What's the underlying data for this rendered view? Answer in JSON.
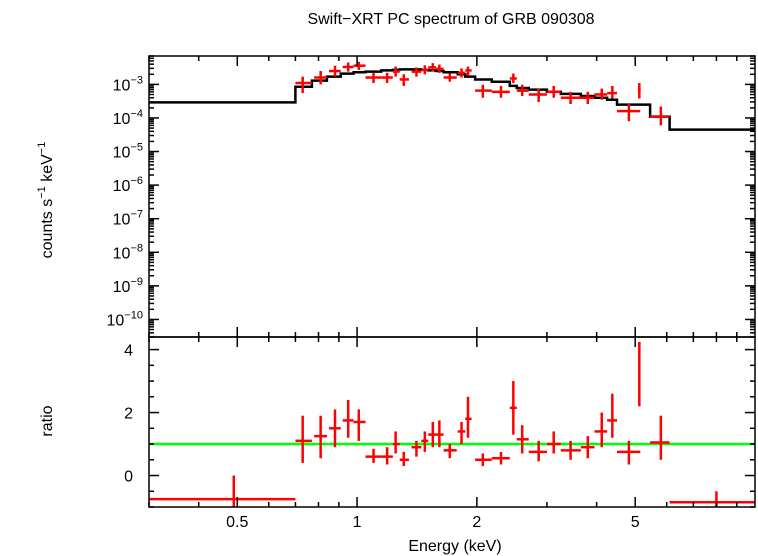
{
  "chart_data": [
    {
      "type": "line",
      "panel": "spectrum",
      "title": "Swift−XRT PC spectrum of GRB 090308",
      "ylabel": {
        "base": "counts s",
        "exp1": "−1",
        "mid": " keV",
        "exp2": "−1"
      },
      "xlabel": "",
      "xscale": "log",
      "yscale": "log",
      "xlim": [
        0.3,
        10
      ],
      "ylim": [
        3e-11,
        0.007
      ],
      "yticks": [
        {
          "value": 0.001,
          "mant": "10",
          "exp": "−3"
        },
        {
          "value": 0.0001,
          "mant": "10",
          "exp": "−4"
        },
        {
          "value": 1e-05,
          "mant": "10",
          "exp": "−5"
        },
        {
          "value": 1e-06,
          "mant": "10",
          "exp": "−6"
        },
        {
          "value": 1e-07,
          "mant": "10",
          "exp": "−7"
        },
        {
          "value": 1e-08,
          "mant": "10",
          "exp": "−8"
        },
        {
          "value": 1e-09,
          "mant": "10",
          "exp": "−9"
        },
        {
          "value": 1e-10,
          "mant": "10",
          "exp": "−10"
        }
      ],
      "colors": {
        "data": "#ff0000",
        "model": "#000000",
        "axes": "#000000"
      },
      "series": [
        {
          "role": "data",
          "points": [
            {
              "x": 0.73,
              "xlo": 0.7,
              "xhi": 0.77,
              "y": 0.0011,
              "ylo": 0.00055,
              "yhi": 0.0017
            },
            {
              "x": 0.81,
              "xlo": 0.78,
              "xhi": 0.84,
              "y": 0.0016,
              "ylo": 0.001,
              "yhi": 0.0025
            },
            {
              "x": 0.88,
              "xlo": 0.85,
              "xhi": 0.91,
              "y": 0.0025,
              "ylo": 0.0017,
              "yhi": 0.0036
            },
            {
              "x": 0.95,
              "xlo": 0.92,
              "xhi": 0.98,
              "y": 0.0033,
              "ylo": 0.0024,
              "yhi": 0.0045
            },
            {
              "x": 1.01,
              "xlo": 0.98,
              "xhi": 1.05,
              "y": 0.0036,
              "ylo": 0.0027,
              "yhi": 0.0047
            },
            {
              "x": 1.1,
              "xlo": 1.05,
              "xhi": 1.15,
              "y": 0.0016,
              "ylo": 0.0011,
              "yhi": 0.0022
            },
            {
              "x": 1.19,
              "xlo": 1.15,
              "xhi": 1.23,
              "y": 0.0016,
              "ylo": 0.0011,
              "yhi": 0.0022
            },
            {
              "x": 1.25,
              "xlo": 1.23,
              "xhi": 1.28,
              "y": 0.0024,
              "ylo": 0.0017,
              "yhi": 0.0034
            },
            {
              "x": 1.31,
              "xlo": 1.28,
              "xhi": 1.35,
              "y": 0.0014,
              "ylo": 0.0009,
              "yhi": 0.002
            },
            {
              "x": 1.41,
              "xlo": 1.37,
              "xhi": 1.45,
              "y": 0.0024,
              "ylo": 0.0017,
              "yhi": 0.0032
            },
            {
              "x": 1.48,
              "xlo": 1.45,
              "xhi": 1.51,
              "y": 0.0027,
              "ylo": 0.002,
              "yhi": 0.0037
            },
            {
              "x": 1.55,
              "xlo": 1.51,
              "xhi": 1.58,
              "y": 0.0032,
              "ylo": 0.0024,
              "yhi": 0.0043
            },
            {
              "x": 1.61,
              "xlo": 1.58,
              "xhi": 1.65,
              "y": 0.0029,
              "ylo": 0.0022,
              "yhi": 0.0039
            },
            {
              "x": 1.71,
              "xlo": 1.65,
              "xhi": 1.78,
              "y": 0.0016,
              "ylo": 0.0012,
              "yhi": 0.0021
            },
            {
              "x": 1.83,
              "xlo": 1.79,
              "xhi": 1.87,
              "y": 0.0022,
              "ylo": 0.0016,
              "yhi": 0.003
            },
            {
              "x": 1.9,
              "xlo": 1.87,
              "xhi": 1.94,
              "y": 0.0026,
              "ylo": 0.0018,
              "yhi": 0.0034
            },
            {
              "x": 2.07,
              "xlo": 1.98,
              "xhi": 2.18,
              "y": 0.00065,
              "ylo": 0.0004,
              "yhi": 0.00098
            },
            {
              "x": 2.3,
              "xlo": 2.18,
              "xhi": 2.42,
              "y": 0.0006,
              "ylo": 0.0004,
              "yhi": 0.0009
            },
            {
              "x": 2.47,
              "xlo": 2.42,
              "xhi": 2.52,
              "y": 0.0015,
              "ylo": 0.0011,
              "yhi": 0.0021
            },
            {
              "x": 2.6,
              "xlo": 2.52,
              "xhi": 2.7,
              "y": 0.00065,
              "ylo": 0.00045,
              "yhi": 0.00098
            },
            {
              "x": 2.86,
              "xlo": 2.7,
              "xhi": 3.0,
              "y": 0.0005,
              "ylo": 0.0003,
              "yhi": 0.00075
            },
            {
              "x": 3.12,
              "xlo": 3.0,
              "xhi": 3.25,
              "y": 0.0006,
              "ylo": 0.0004,
              "yhi": 0.0009
            },
            {
              "x": 3.44,
              "xlo": 3.25,
              "xhi": 3.65,
              "y": 0.0004,
              "ylo": 0.00026,
              "yhi": 0.0006
            },
            {
              "x": 3.8,
              "xlo": 3.65,
              "xhi": 3.95,
              "y": 0.0004,
              "ylo": 0.00026,
              "yhi": 0.0006
            },
            {
              "x": 4.12,
              "xlo": 3.95,
              "xhi": 4.25,
              "y": 0.0005,
              "ylo": 0.00035,
              "yhi": 0.00075
            },
            {
              "x": 4.38,
              "xlo": 4.25,
              "xhi": 4.5,
              "y": 0.00055,
              "ylo": 0.00038,
              "yhi": 0.0009
            },
            {
              "x": 4.82,
              "xlo": 4.5,
              "xhi": 5.15,
              "y": 0.00016,
              "ylo": 8e-05,
              "yhi": 0.00026
            },
            {
              "x": 5.12,
              "xlo": 5.08,
              "xhi": 5.16,
              "y": 0.0007,
              "ylo": 0.00038,
              "yhi": 0.0011
            },
            {
              "x": 5.8,
              "xlo": 5.45,
              "xhi": 6.1,
              "y": 0.00011,
              "ylo": 6e-05,
              "yhi": 0.00022
            }
          ]
        },
        {
          "role": "model",
          "steps": [
            {
              "x1": 0.3,
              "x2": 0.7,
              "y": 0.00029
            },
            {
              "x1": 0.7,
              "x2": 0.77,
              "y": 0.00085
            },
            {
              "x1": 0.77,
              "x2": 0.84,
              "y": 0.0013
            },
            {
              "x1": 0.84,
              "x2": 0.91,
              "y": 0.0017
            },
            {
              "x1": 0.91,
              "x2": 0.98,
              "y": 0.0021
            },
            {
              "x1": 0.98,
              "x2": 1.05,
              "y": 0.0023
            },
            {
              "x1": 1.05,
              "x2": 1.15,
              "y": 0.0024
            },
            {
              "x1": 1.15,
              "x2": 1.23,
              "y": 0.0026
            },
            {
              "x1": 1.23,
              "x2": 1.28,
              "y": 0.0027
            },
            {
              "x1": 1.28,
              "x2": 1.37,
              "y": 0.0028
            },
            {
              "x1": 1.37,
              "x2": 1.45,
              "y": 0.0028
            },
            {
              "x1": 1.45,
              "x2": 1.51,
              "y": 0.0027
            },
            {
              "x1": 1.51,
              "x2": 1.58,
              "y": 0.0026
            },
            {
              "x1": 1.58,
              "x2": 1.65,
              "y": 0.0025
            },
            {
              "x1": 1.65,
              "x2": 1.79,
              "y": 0.0023
            },
            {
              "x1": 1.79,
              "x2": 1.87,
              "y": 0.002
            },
            {
              "x1": 1.87,
              "x2": 1.98,
              "y": 0.0017
            },
            {
              "x1": 1.98,
              "x2": 2.18,
              "y": 0.0014
            },
            {
              "x1": 2.18,
              "x2": 2.42,
              "y": 0.0012
            },
            {
              "x1": 2.42,
              "x2": 2.52,
              "y": 0.0009
            },
            {
              "x1": 2.52,
              "x2": 2.7,
              "y": 0.00078
            },
            {
              "x1": 2.7,
              "x2": 3.0,
              "y": 0.0007
            },
            {
              "x1": 3.0,
              "x2": 3.25,
              "y": 0.0006
            },
            {
              "x1": 3.25,
              "x2": 3.65,
              "y": 0.00052
            },
            {
              "x1": 3.65,
              "x2": 3.95,
              "y": 0.00045
            },
            {
              "x1": 3.95,
              "x2": 4.25,
              "y": 0.0004
            },
            {
              "x1": 4.25,
              "x2": 4.5,
              "y": 0.00035
            },
            {
              "x1": 4.5,
              "x2": 5.45,
              "y": 0.00025
            },
            {
              "x1": 5.45,
              "x2": 6.1,
              "y": 0.00011
            },
            {
              "x1": 6.1,
              "x2": 10.0,
              "y": 4.5e-05
            }
          ]
        }
      ]
    },
    {
      "type": "line",
      "panel": "ratio",
      "xlabel": "Energy (keV)",
      "ylabel": "ratio",
      "xscale": "log",
      "xlim": [
        0.3,
        10
      ],
      "ylim": [
        -1,
        4.4
      ],
      "xticks": [
        {
          "value": 0.5,
          "label": "0.5"
        },
        {
          "value": 1,
          "label": "1"
        },
        {
          "value": 2,
          "label": "2"
        },
        {
          "value": 5,
          "label": "5"
        }
      ],
      "yticks": [
        {
          "value": 0,
          "label": "0"
        },
        {
          "value": 2,
          "label": "2"
        },
        {
          "value": 4,
          "label": "4"
        }
      ],
      "reference_line": 1,
      "colors": {
        "data": "#ff0000",
        "reference": "#00ff00",
        "axes": "#000000"
      },
      "series": [
        {
          "role": "ratio",
          "points": [
            {
              "x": 0.49,
              "xlo": 0.3,
              "xhi": 0.7,
              "y": -0.75,
              "ylo": -1.0,
              "yhi": 0.0
            },
            {
              "x": 0.73,
              "xlo": 0.7,
              "xhi": 0.77,
              "y": 1.1,
              "ylo": 0.4,
              "yhi": 1.9
            },
            {
              "x": 0.81,
              "xlo": 0.78,
              "xhi": 0.84,
              "y": 1.25,
              "ylo": 0.55,
              "yhi": 1.9
            },
            {
              "x": 0.88,
              "xlo": 0.85,
              "xhi": 0.91,
              "y": 1.5,
              "ylo": 0.9,
              "yhi": 2.1
            },
            {
              "x": 0.95,
              "xlo": 0.92,
              "xhi": 0.98,
              "y": 1.75,
              "ylo": 1.2,
              "yhi": 2.4
            },
            {
              "x": 1.01,
              "xlo": 0.98,
              "xhi": 1.05,
              "y": 1.7,
              "ylo": 1.1,
              "yhi": 2.1
            },
            {
              "x": 1.1,
              "xlo": 1.05,
              "xhi": 1.15,
              "y": 0.6,
              "ylo": 0.4,
              "yhi": 0.85
            },
            {
              "x": 1.19,
              "xlo": 1.15,
              "xhi": 1.23,
              "y": 0.6,
              "ylo": 0.35,
              "yhi": 0.9
            },
            {
              "x": 1.25,
              "xlo": 1.23,
              "xhi": 1.28,
              "y": 1.0,
              "ylo": 0.7,
              "yhi": 1.4
            },
            {
              "x": 1.31,
              "xlo": 1.28,
              "xhi": 1.35,
              "y": 0.5,
              "ylo": 0.3,
              "yhi": 0.75
            },
            {
              "x": 1.41,
              "xlo": 1.37,
              "xhi": 1.45,
              "y": 0.9,
              "ylo": 0.6,
              "yhi": 1.1
            },
            {
              "x": 1.48,
              "xlo": 1.45,
              "xhi": 1.51,
              "y": 1.1,
              "ylo": 0.75,
              "yhi": 1.4
            },
            {
              "x": 1.55,
              "xlo": 1.51,
              "xhi": 1.58,
              "y": 1.3,
              "ylo": 0.9,
              "yhi": 1.7
            },
            {
              "x": 1.61,
              "xlo": 1.58,
              "xhi": 1.65,
              "y": 1.3,
              "ylo": 0.9,
              "yhi": 1.75
            },
            {
              "x": 1.71,
              "xlo": 1.65,
              "xhi": 1.78,
              "y": 0.8,
              "ylo": 0.55,
              "yhi": 1.0
            },
            {
              "x": 1.83,
              "xlo": 1.79,
              "xhi": 1.87,
              "y": 1.4,
              "ylo": 1.0,
              "yhi": 1.7
            },
            {
              "x": 1.9,
              "xlo": 1.87,
              "xhi": 1.94,
              "y": 1.8,
              "ylo": 1.2,
              "yhi": 2.5
            },
            {
              "x": 2.07,
              "xlo": 1.98,
              "xhi": 2.18,
              "y": 0.5,
              "ylo": 0.3,
              "yhi": 0.7
            },
            {
              "x": 2.3,
              "xlo": 2.18,
              "xhi": 2.42,
              "y": 0.55,
              "ylo": 0.35,
              "yhi": 0.75
            },
            {
              "x": 2.47,
              "xlo": 2.42,
              "xhi": 2.52,
              "y": 2.15,
              "ylo": 1.3,
              "yhi": 3.0
            },
            {
              "x": 2.6,
              "xlo": 2.52,
              "xhi": 2.7,
              "y": 1.15,
              "ylo": 0.7,
              "yhi": 1.6
            },
            {
              "x": 2.86,
              "xlo": 2.7,
              "xhi": 3.0,
              "y": 0.75,
              "ylo": 0.45,
              "yhi": 1.1
            },
            {
              "x": 3.12,
              "xlo": 3.0,
              "xhi": 3.25,
              "y": 1.0,
              "ylo": 0.7,
              "yhi": 1.4
            },
            {
              "x": 3.44,
              "xlo": 3.25,
              "xhi": 3.65,
              "y": 0.8,
              "ylo": 0.5,
              "yhi": 1.1
            },
            {
              "x": 3.8,
              "xlo": 3.65,
              "xhi": 3.95,
              "y": 0.9,
              "ylo": 0.55,
              "yhi": 1.25
            },
            {
              "x": 4.12,
              "xlo": 3.95,
              "xhi": 4.25,
              "y": 1.4,
              "ylo": 0.9,
              "yhi": 2.0
            },
            {
              "x": 4.38,
              "xlo": 4.25,
              "xhi": 4.5,
              "y": 1.75,
              "ylo": 1.2,
              "yhi": 2.6
            },
            {
              "x": 4.82,
              "xlo": 4.5,
              "xhi": 5.15,
              "y": 0.75,
              "ylo": 0.35,
              "yhi": 1.1
            },
            {
              "x": 5.12,
              "xlo": 5.08,
              "xhi": 5.16,
              "y": 4.2,
              "ylo": 2.2,
              "yhi": 4.2
            },
            {
              "x": 5.8,
              "xlo": 5.45,
              "xhi": 6.1,
              "y": 1.05,
              "ylo": 0.5,
              "yhi": 1.9
            },
            {
              "x": 8.0,
              "xlo": 6.1,
              "xhi": 10.0,
              "y": -0.85,
              "ylo": -1.0,
              "yhi": -0.5
            }
          ]
        }
      ]
    }
  ]
}
